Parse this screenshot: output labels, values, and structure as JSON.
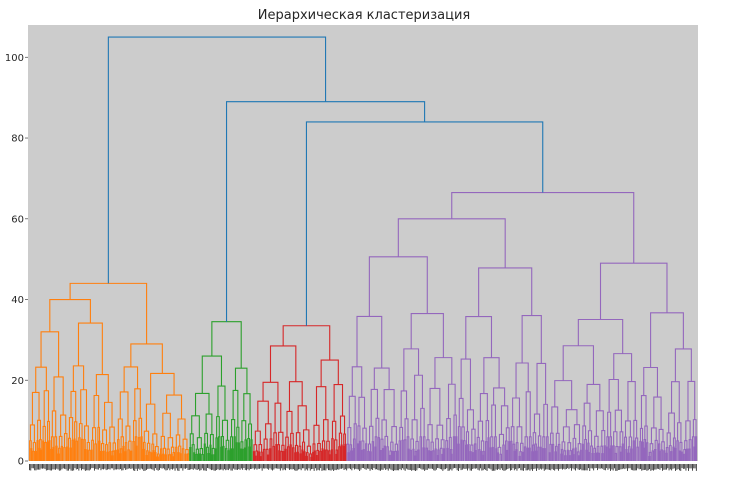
{
  "chart_data": {
    "type": "dendrogram",
    "title": "Иерархическая кластеризация",
    "xlabel": "",
    "ylabel": "",
    "ylim": [
      0,
      108
    ],
    "yticks": [
      0,
      20,
      40,
      60,
      80,
      100
    ],
    "grid": false,
    "background": "#cccccc",
    "link_color_above_threshold": "#1f77b4",
    "clusters": [
      {
        "color": "#ff7f0e",
        "leaf_fraction": 0.24,
        "top_height": 44,
        "split_heights": [
          40,
          29,
          27,
          24,
          22
        ]
      },
      {
        "color": "#2ca02c",
        "leaf_fraction": 0.095,
        "top_height": 34.5,
        "split_heights": [
          26,
          23,
          17
        ]
      },
      {
        "color": "#d62728",
        "leaf_fraction": 0.14,
        "top_height": 33.5,
        "split_heights": [
          28.5,
          25,
          20.5,
          19
        ]
      },
      {
        "color": "#9467bd",
        "leaf_fraction": 0.525,
        "top_height": 66.5,
        "split_heights": [
          60,
          49,
          41.5,
          36,
          32,
          29,
          28.5,
          25.5,
          22
        ]
      }
    ],
    "upper_merges": [
      {
        "height": 66.5,
        "joins": "purple clusters"
      },
      {
        "height": 84,
        "joins": "red + purple"
      },
      {
        "height": 89,
        "joins": "green + (red, purple)"
      },
      {
        "height": 105,
        "joins": "orange + rest"
      }
    ]
  }
}
